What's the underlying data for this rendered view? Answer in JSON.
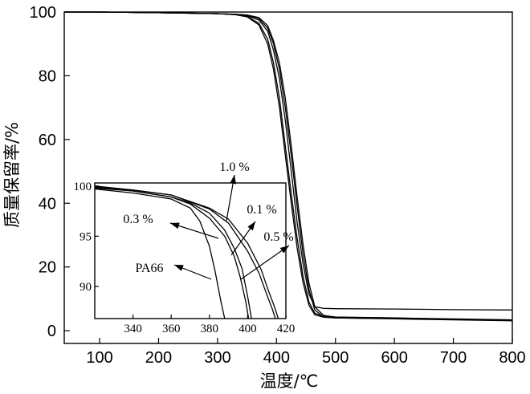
{
  "chart_data": [
    {
      "type": "line",
      "xlabel": "温度/℃",
      "ylabel": "质量保留率/%",
      "xlim": [
        40,
        800
      ],
      "ylim": [
        -4,
        100
      ],
      "xticks": [
        100,
        200,
        300,
        400,
        500,
        600,
        700,
        800
      ],
      "yticks": [
        0,
        20,
        40,
        60,
        80,
        100
      ],
      "series": [
        {
          "x": [
            40,
            100,
            200,
            300,
            330,
            350,
            370,
            385,
            395,
            405,
            415,
            425,
            435,
            445,
            455,
            465,
            480,
            500,
            600,
            700,
            800
          ],
          "values": [
            100,
            100,
            99.8,
            99.5,
            99.2,
            98.5,
            96,
            90,
            82,
            70,
            55,
            40,
            26,
            15,
            8,
            5,
            4.2,
            4,
            3.8,
            3.5,
            3.2
          ]
        },
        {
          "x": [
            40,
            100,
            200,
            300,
            330,
            350,
            370,
            385,
            395,
            405,
            415,
            425,
            435,
            445,
            455,
            465,
            480,
            500,
            600,
            700,
            800
          ],
          "values": [
            100,
            100,
            99.8,
            99.5,
            99.2,
            98.6,
            96.5,
            91.5,
            84,
            73,
            58,
            43,
            29,
            17,
            9,
            5.5,
            4.5,
            4.2,
            4,
            3.7,
            3.4
          ]
        },
        {
          "x": [
            40,
            100,
            200,
            300,
            330,
            350,
            370,
            385,
            395,
            405,
            415,
            425,
            435,
            445,
            455,
            465,
            480,
            500,
            600,
            700,
            800
          ],
          "values": [
            100,
            100,
            99.8,
            99.5,
            99.2,
            98.8,
            97.5,
            94,
            88,
            79,
            66,
            50,
            34,
            21,
            11.5,
            7.5,
            7,
            6.9,
            6.8,
            6.6,
            6.5
          ]
        },
        {
          "x": [
            40,
            100,
            200,
            300,
            330,
            350,
            370,
            385,
            395,
            405,
            415,
            425,
            435,
            445,
            455,
            465,
            480,
            500,
            600,
            700,
            800
          ],
          "values": [
            100,
            100,
            99.8,
            99.5,
            99.3,
            99,
            98,
            95,
            90,
            82,
            70,
            55,
            39,
            24,
            13,
            6.5,
            4.3,
            4,
            3.7,
            3.4,
            3.1
          ]
        },
        {
          "x": [
            40,
            100,
            200,
            300,
            330,
            350,
            370,
            385,
            395,
            405,
            415,
            425,
            435,
            445,
            455,
            465,
            480,
            500,
            600,
            700,
            800
          ],
          "values": [
            100,
            100,
            99.8,
            99.5,
            99.3,
            99.1,
            98.3,
            95.8,
            91,
            84,
            73,
            58,
            42,
            27,
            15,
            7.5,
            4.8,
            4.3,
            4,
            3.6,
            3.3
          ]
        }
      ]
    },
    {
      "type": "line",
      "xlim": [
        320,
        420
      ],
      "ylim": [
        86.8,
        100.3
      ],
      "xticks": [
        340,
        360,
        380,
        400,
        420
      ],
      "yticks": [
        90,
        95,
        100
      ],
      "series": [
        {
          "name": "PA66",
          "x": [
            320,
            340,
            360,
            370,
            375,
            380,
            383,
            386,
            388
          ],
          "values": [
            99.7,
            99.3,
            98.7,
            97.8,
            96.5,
            94,
            91.5,
            88.5,
            86.8
          ]
        },
        {
          "name": "0.3 %",
          "x": [
            320,
            340,
            360,
            370,
            380,
            388,
            393,
            396,
            399,
            400.5
          ],
          "values": [
            99.8,
            99.5,
            98.9,
            98.2,
            96.8,
            95,
            93,
            91,
            88.5,
            86.8
          ]
        },
        {
          "name": "1.0 %",
          "x": [
            320,
            340,
            360,
            370,
            380,
            388,
            393,
            397,
            400,
            402
          ],
          "values": [
            99.9,
            99.5,
            98.9,
            98.3,
            97.3,
            95.6,
            93.8,
            91.8,
            89,
            86.8
          ]
        },
        {
          "name": "0.1 %",
          "x": [
            320,
            340,
            360,
            380,
            390,
            400,
            406,
            410,
            413,
            414.5
          ],
          "values": [
            99.9,
            99.6,
            99.1,
            97.7,
            96.3,
            93.5,
            91.3,
            89.2,
            87.7,
            86.8
          ]
        },
        {
          "name": "0.5 %",
          "x": [
            320,
            340,
            360,
            380,
            390,
            400,
            407,
            411,
            414,
            416
          ],
          "values": [
            100,
            99.6,
            99.1,
            97.8,
            96.7,
            94.3,
            91.7,
            89.5,
            88,
            86.8
          ]
        }
      ],
      "annotations": [
        {
          "text": "1.0 %"
        },
        {
          "text": "0.1 %"
        },
        {
          "text": "0.3 %"
        },
        {
          "text": "0.5 %"
        },
        {
          "text": "PA66"
        }
      ]
    }
  ]
}
